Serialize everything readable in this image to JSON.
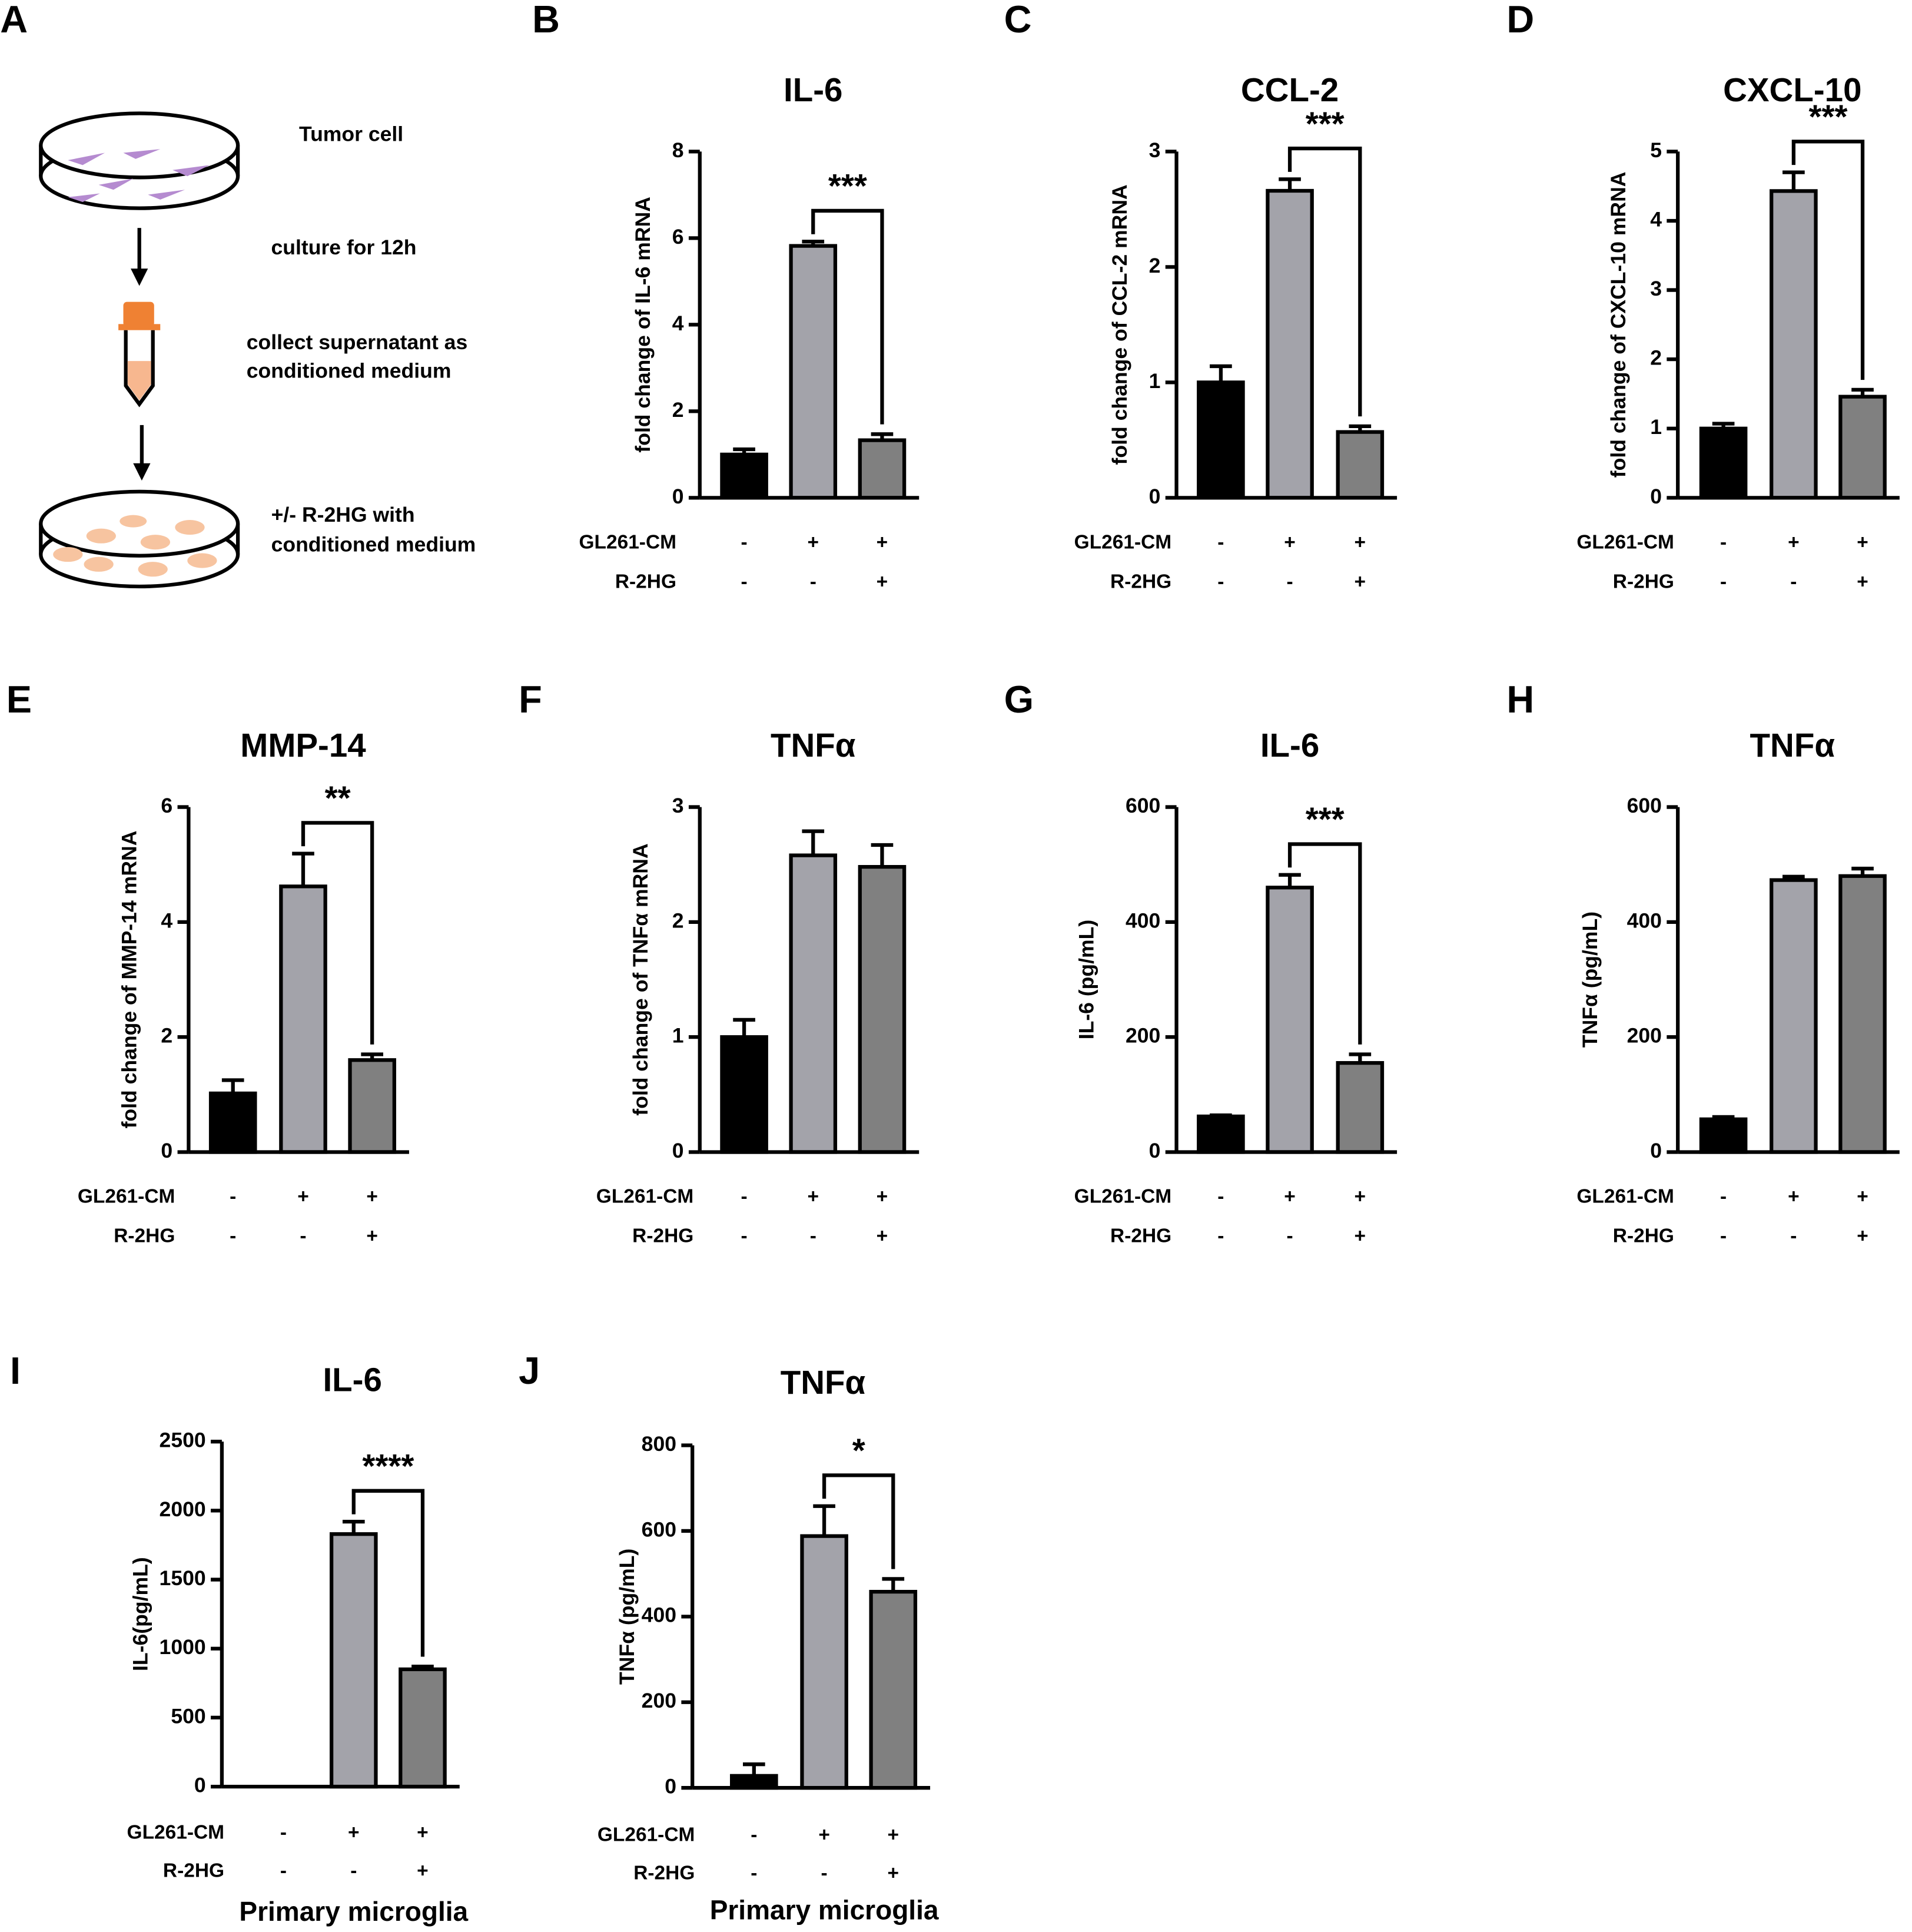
{
  "schematic": {
    "label": "A",
    "steps": [
      [
        "Tumor cell"
      ],
      [
        "culture for 12h"
      ],
      [
        "collect supernatant as",
        "conditioned medium"
      ],
      [
        "+/- R-2HG with",
        "conditioned medium"
      ]
    ]
  },
  "chart_data": [
    {
      "type": "bar",
      "panel": "B",
      "title": "IL-6",
      "ylabel": "fold change of IL-6 mRNA",
      "values": [
        1.0,
        5.82,
        1.33
      ],
      "errors": [
        0.12,
        0.1,
        0.14
      ],
      "colors": [
        "#000000",
        "#a3a3aa",
        "#808080"
      ],
      "ylim": [
        0,
        8
      ],
      "yticks": [
        0,
        2,
        4,
        6,
        8
      ],
      "conditions": [
        {
          "name": "GL261-CM",
          "signs": [
            "-",
            "+",
            "+"
          ]
        },
        {
          "name": "R-2HG",
          "signs": [
            "-",
            "-",
            "+"
          ]
        }
      ],
      "significance": {
        "label": "***",
        "from": 1,
        "to": 2
      }
    },
    {
      "type": "bar",
      "panel": "C",
      "title": "CCL-2",
      "ylabel": "fold change of CCL-2 mRNA",
      "values": [
        1.0,
        2.66,
        0.57
      ],
      "errors": [
        0.14,
        0.1,
        0.05
      ],
      "colors": [
        "#000000",
        "#a3a3aa",
        "#808080"
      ],
      "ylim": [
        0,
        3
      ],
      "yticks": [
        0,
        1,
        2,
        3
      ],
      "conditions": [
        {
          "name": "GL261-CM",
          "signs": [
            "-",
            "+",
            "+"
          ]
        },
        {
          "name": "R-2HG",
          "signs": [
            "-",
            "-",
            "+"
          ]
        }
      ],
      "significance": {
        "label": "***",
        "from": 1,
        "to": 2
      }
    },
    {
      "type": "bar",
      "panel": "D",
      "title": "CXCL-10",
      "ylabel": "fold change of CXCL-10 mRNA",
      "values": [
        1.0,
        4.43,
        1.46
      ],
      "errors": [
        0.07,
        0.27,
        0.1
      ],
      "colors": [
        "#000000",
        "#a3a3aa",
        "#808080"
      ],
      "ylim": [
        0,
        5
      ],
      "yticks": [
        0,
        1,
        2,
        3,
        4,
        5
      ],
      "conditions": [
        {
          "name": "GL261-CM",
          "signs": [
            "-",
            "+",
            "+"
          ]
        },
        {
          "name": "R-2HG",
          "signs": [
            "-",
            "-",
            "+"
          ]
        }
      ],
      "significance": {
        "label": "***",
        "from": 1,
        "to": 2
      }
    },
    {
      "type": "bar",
      "panel": "E",
      "title": "MMP-14",
      "ylabel": "fold change of MMP-14 mRNA",
      "values": [
        1.02,
        4.62,
        1.6
      ],
      "errors": [
        0.23,
        0.57,
        0.1
      ],
      "colors": [
        "#000000",
        "#a3a3aa",
        "#808080"
      ],
      "ylim": [
        0,
        6
      ],
      "yticks": [
        0,
        2,
        4,
        6
      ],
      "conditions": [
        {
          "name": "GL261-CM",
          "signs": [
            "-",
            "+",
            "+"
          ]
        },
        {
          "name": "R-2HG",
          "signs": [
            "-",
            "-",
            "+"
          ]
        }
      ],
      "significance": {
        "label": "**",
        "from": 1,
        "to": 2
      }
    },
    {
      "type": "bar",
      "panel": "F",
      "title": "TNFα",
      "ylabel": "fold change of TNFα mRNA",
      "values": [
        1.0,
        2.58,
        2.48
      ],
      "errors": [
        0.15,
        0.21,
        0.19
      ],
      "colors": [
        "#000000",
        "#a3a3aa",
        "#808080"
      ],
      "ylim": [
        0,
        3
      ],
      "yticks": [
        0,
        1,
        2,
        3
      ],
      "conditions": [
        {
          "name": "GL261-CM",
          "signs": [
            "-",
            "+",
            "+"
          ]
        },
        {
          "name": "R-2HG",
          "signs": [
            "-",
            "-",
            "+"
          ]
        }
      ]
    },
    {
      "type": "bar",
      "panel": "G",
      "title": "IL-6",
      "ylabel": "IL-6 (pg/mL)",
      "values": [
        62,
        460,
        155
      ],
      "errors": [
        2,
        22,
        15
      ],
      "colors": [
        "#000000",
        "#a3a3aa",
        "#808080"
      ],
      "ylim": [
        0,
        600
      ],
      "yticks": [
        0,
        200,
        400,
        600
      ],
      "conditions": [
        {
          "name": "GL261-CM",
          "signs": [
            "-",
            "+",
            "+"
          ]
        },
        {
          "name": "R-2HG",
          "signs": [
            "-",
            "-",
            "+"
          ]
        }
      ],
      "significance": {
        "label": "***",
        "from": 1,
        "to": 2
      }
    },
    {
      "type": "bar",
      "panel": "H",
      "title": "TNFα",
      "ylabel": "TNFα (pg/mL)",
      "values": [
        57,
        473,
        480
      ],
      "errors": [
        4,
        6,
        13
      ],
      "colors": [
        "#000000",
        "#a3a3aa",
        "#808080"
      ],
      "ylim": [
        0,
        600
      ],
      "yticks": [
        0,
        200,
        400,
        600
      ],
      "conditions": [
        {
          "name": "GL261-CM",
          "signs": [
            "-",
            "+",
            "+"
          ]
        },
        {
          "name": "R-2HG",
          "signs": [
            "-",
            "-",
            "+"
          ]
        }
      ]
    },
    {
      "type": "bar",
      "panel": "I",
      "title": "IL-6",
      "ylabel": "IL-6(pg/mL)",
      "xlabel": "Primary microglia",
      "values": [
        0,
        1830,
        850
      ],
      "errors": [
        0,
        90,
        20
      ],
      "colors": [
        "#000000",
        "#a3a3aa",
        "#808080"
      ],
      "ylim": [
        0,
        2500
      ],
      "yticks": [
        0,
        500,
        1000,
        1500,
        2000,
        2500
      ],
      "conditions": [
        {
          "name": "GL261-CM",
          "signs": [
            "-",
            "+",
            "+"
          ]
        },
        {
          "name": "R-2HG",
          "signs": [
            "-",
            "-",
            "+"
          ]
        }
      ],
      "significance": {
        "label": "****",
        "from": 1,
        "to": 2
      }
    },
    {
      "type": "bar",
      "panel": "J",
      "title": "TNFα",
      "ylabel": "TNFα (pg/mL)",
      "xlabel": "Primary microglia",
      "values": [
        28,
        588,
        458
      ],
      "errors": [
        27,
        70,
        30
      ],
      "colors": [
        "#000000",
        "#a3a3aa",
        "#808080"
      ],
      "ylim": [
        0,
        800
      ],
      "yticks": [
        0,
        200,
        400,
        600,
        800
      ],
      "conditions": [
        {
          "name": "GL261-CM",
          "signs": [
            "-",
            "+",
            "+"
          ]
        },
        {
          "name": "R-2HG",
          "signs": [
            "-",
            "-",
            "+"
          ]
        }
      ],
      "significance": {
        "label": "*",
        "from": 1,
        "to": 2
      }
    }
  ]
}
